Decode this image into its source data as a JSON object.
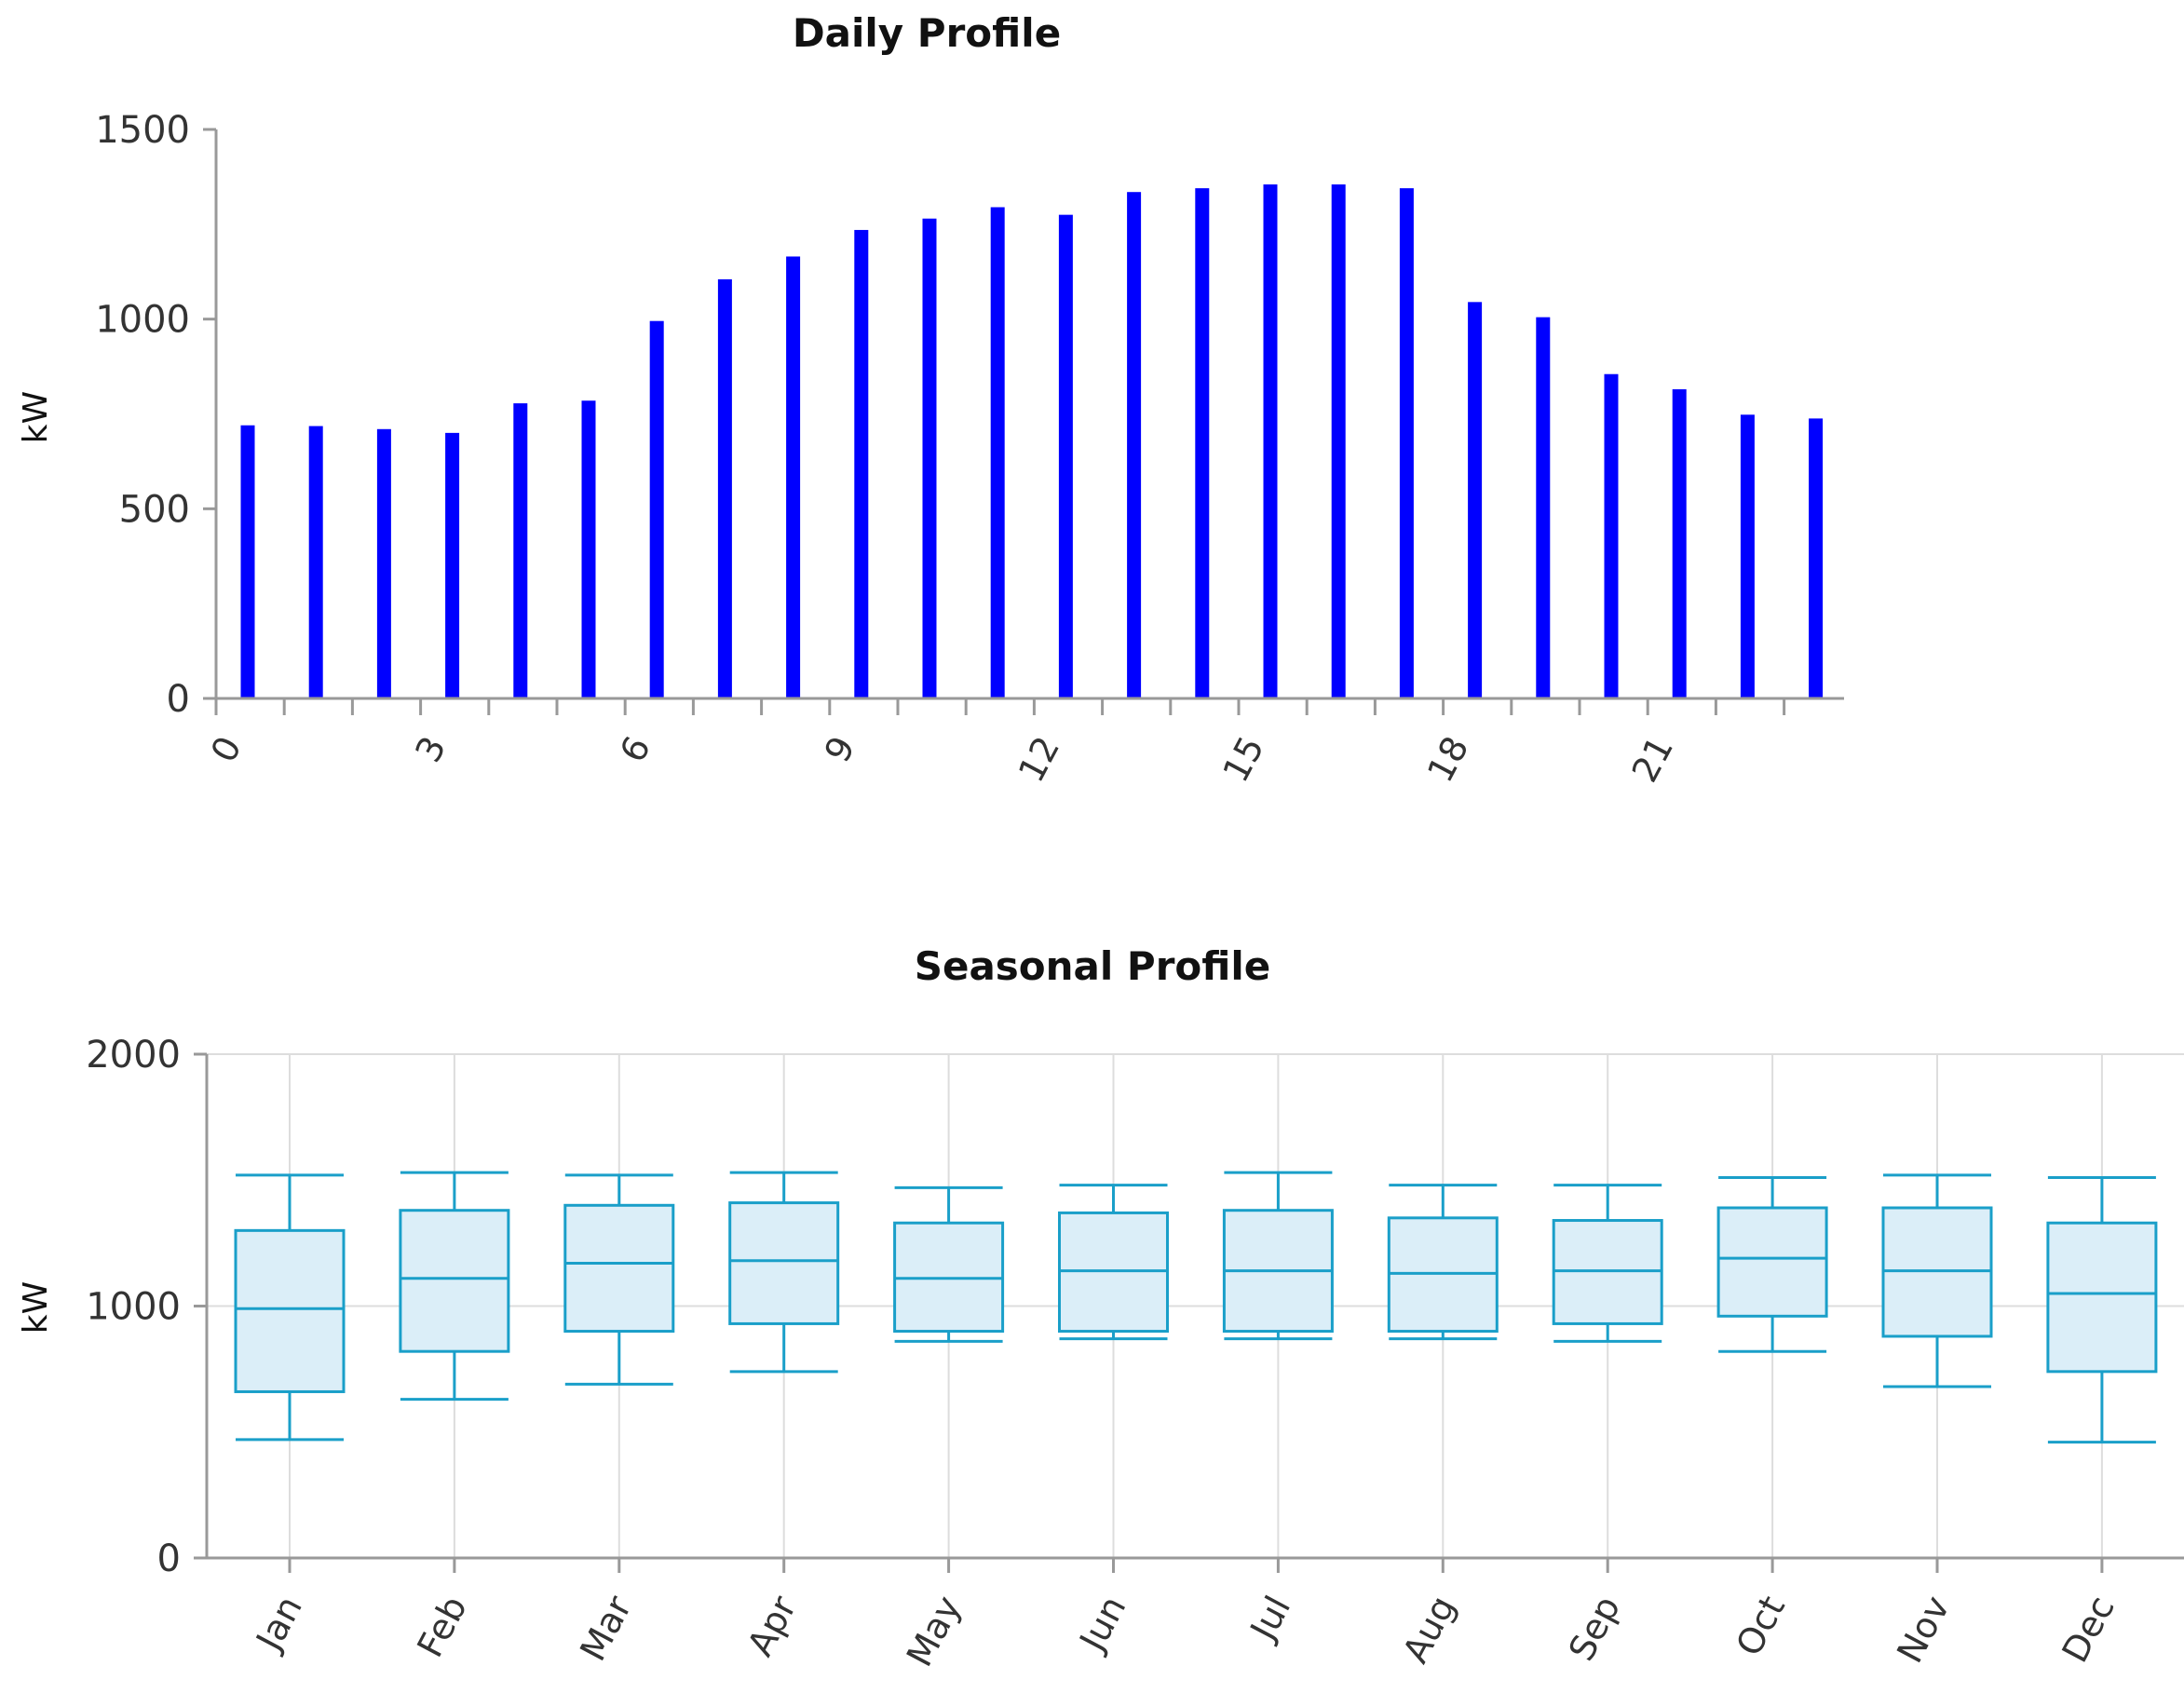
{
  "colors": {
    "bar": "#0000ff",
    "box_stroke": "#1a9fc9",
    "box_fill": "#dbeef8",
    "axis": "#999999",
    "grid": "#dddddd"
  },
  "chart_data": [
    {
      "type": "bar",
      "title": "Daily Profile",
      "xlabel": "",
      "ylabel": "kW",
      "ylim": [
        0,
        1500
      ],
      "yticks": [
        0,
        500,
        1000,
        1500
      ],
      "x": [
        0,
        1,
        2,
        3,
        4,
        5,
        6,
        7,
        8,
        9,
        10,
        11,
        12,
        13,
        14,
        15,
        16,
        17,
        18,
        19,
        20,
        21,
        22,
        23
      ],
      "xtick_labels": [
        "0",
        "3",
        "6",
        "9",
        "12",
        "15",
        "18",
        "21"
      ],
      "values": [
        720,
        718,
        710,
        700,
        778,
        785,
        995,
        1105,
        1165,
        1235,
        1265,
        1295,
        1275,
        1335,
        1345,
        1355,
        1355,
        1345,
        1045,
        1005,
        855,
        815,
        748,
        738
      ],
      "grid": false
    },
    {
      "type": "box",
      "title": "Seasonal Profile",
      "xlabel": "",
      "ylabel": "kW",
      "ylim": [
        0,
        2000
      ],
      "yticks": [
        0,
        1000,
        2000
      ],
      "categories": [
        "Jan",
        "Feb",
        "Mar",
        "Apr",
        "May",
        "Jun",
        "Jul",
        "Aug",
        "Sep",
        "Oct",
        "Nov",
        "Dec"
      ],
      "boxes": [
        {
          "min": 470,
          "q1": 660,
          "median": 990,
          "q3": 1300,
          "max": 1520
        },
        {
          "min": 630,
          "q1": 820,
          "median": 1110,
          "q3": 1380,
          "max": 1530
        },
        {
          "min": 690,
          "q1": 900,
          "median": 1170,
          "q3": 1400,
          "max": 1520
        },
        {
          "min": 740,
          "q1": 930,
          "median": 1180,
          "q3": 1410,
          "max": 1530
        },
        {
          "min": 860,
          "q1": 900,
          "median": 1110,
          "q3": 1330,
          "max": 1470
        },
        {
          "min": 870,
          "q1": 900,
          "median": 1140,
          "q3": 1370,
          "max": 1480
        },
        {
          "min": 870,
          "q1": 900,
          "median": 1140,
          "q3": 1380,
          "max": 1530
        },
        {
          "min": 870,
          "q1": 900,
          "median": 1130,
          "q3": 1350,
          "max": 1480
        },
        {
          "min": 860,
          "q1": 930,
          "median": 1140,
          "q3": 1340,
          "max": 1480
        },
        {
          "min": 820,
          "q1": 960,
          "median": 1190,
          "q3": 1390,
          "max": 1510
        },
        {
          "min": 680,
          "q1": 880,
          "median": 1140,
          "q3": 1390,
          "max": 1520
        },
        {
          "min": 460,
          "q1": 740,
          "median": 1050,
          "q3": 1330,
          "max": 1510
        }
      ],
      "grid": true
    }
  ]
}
